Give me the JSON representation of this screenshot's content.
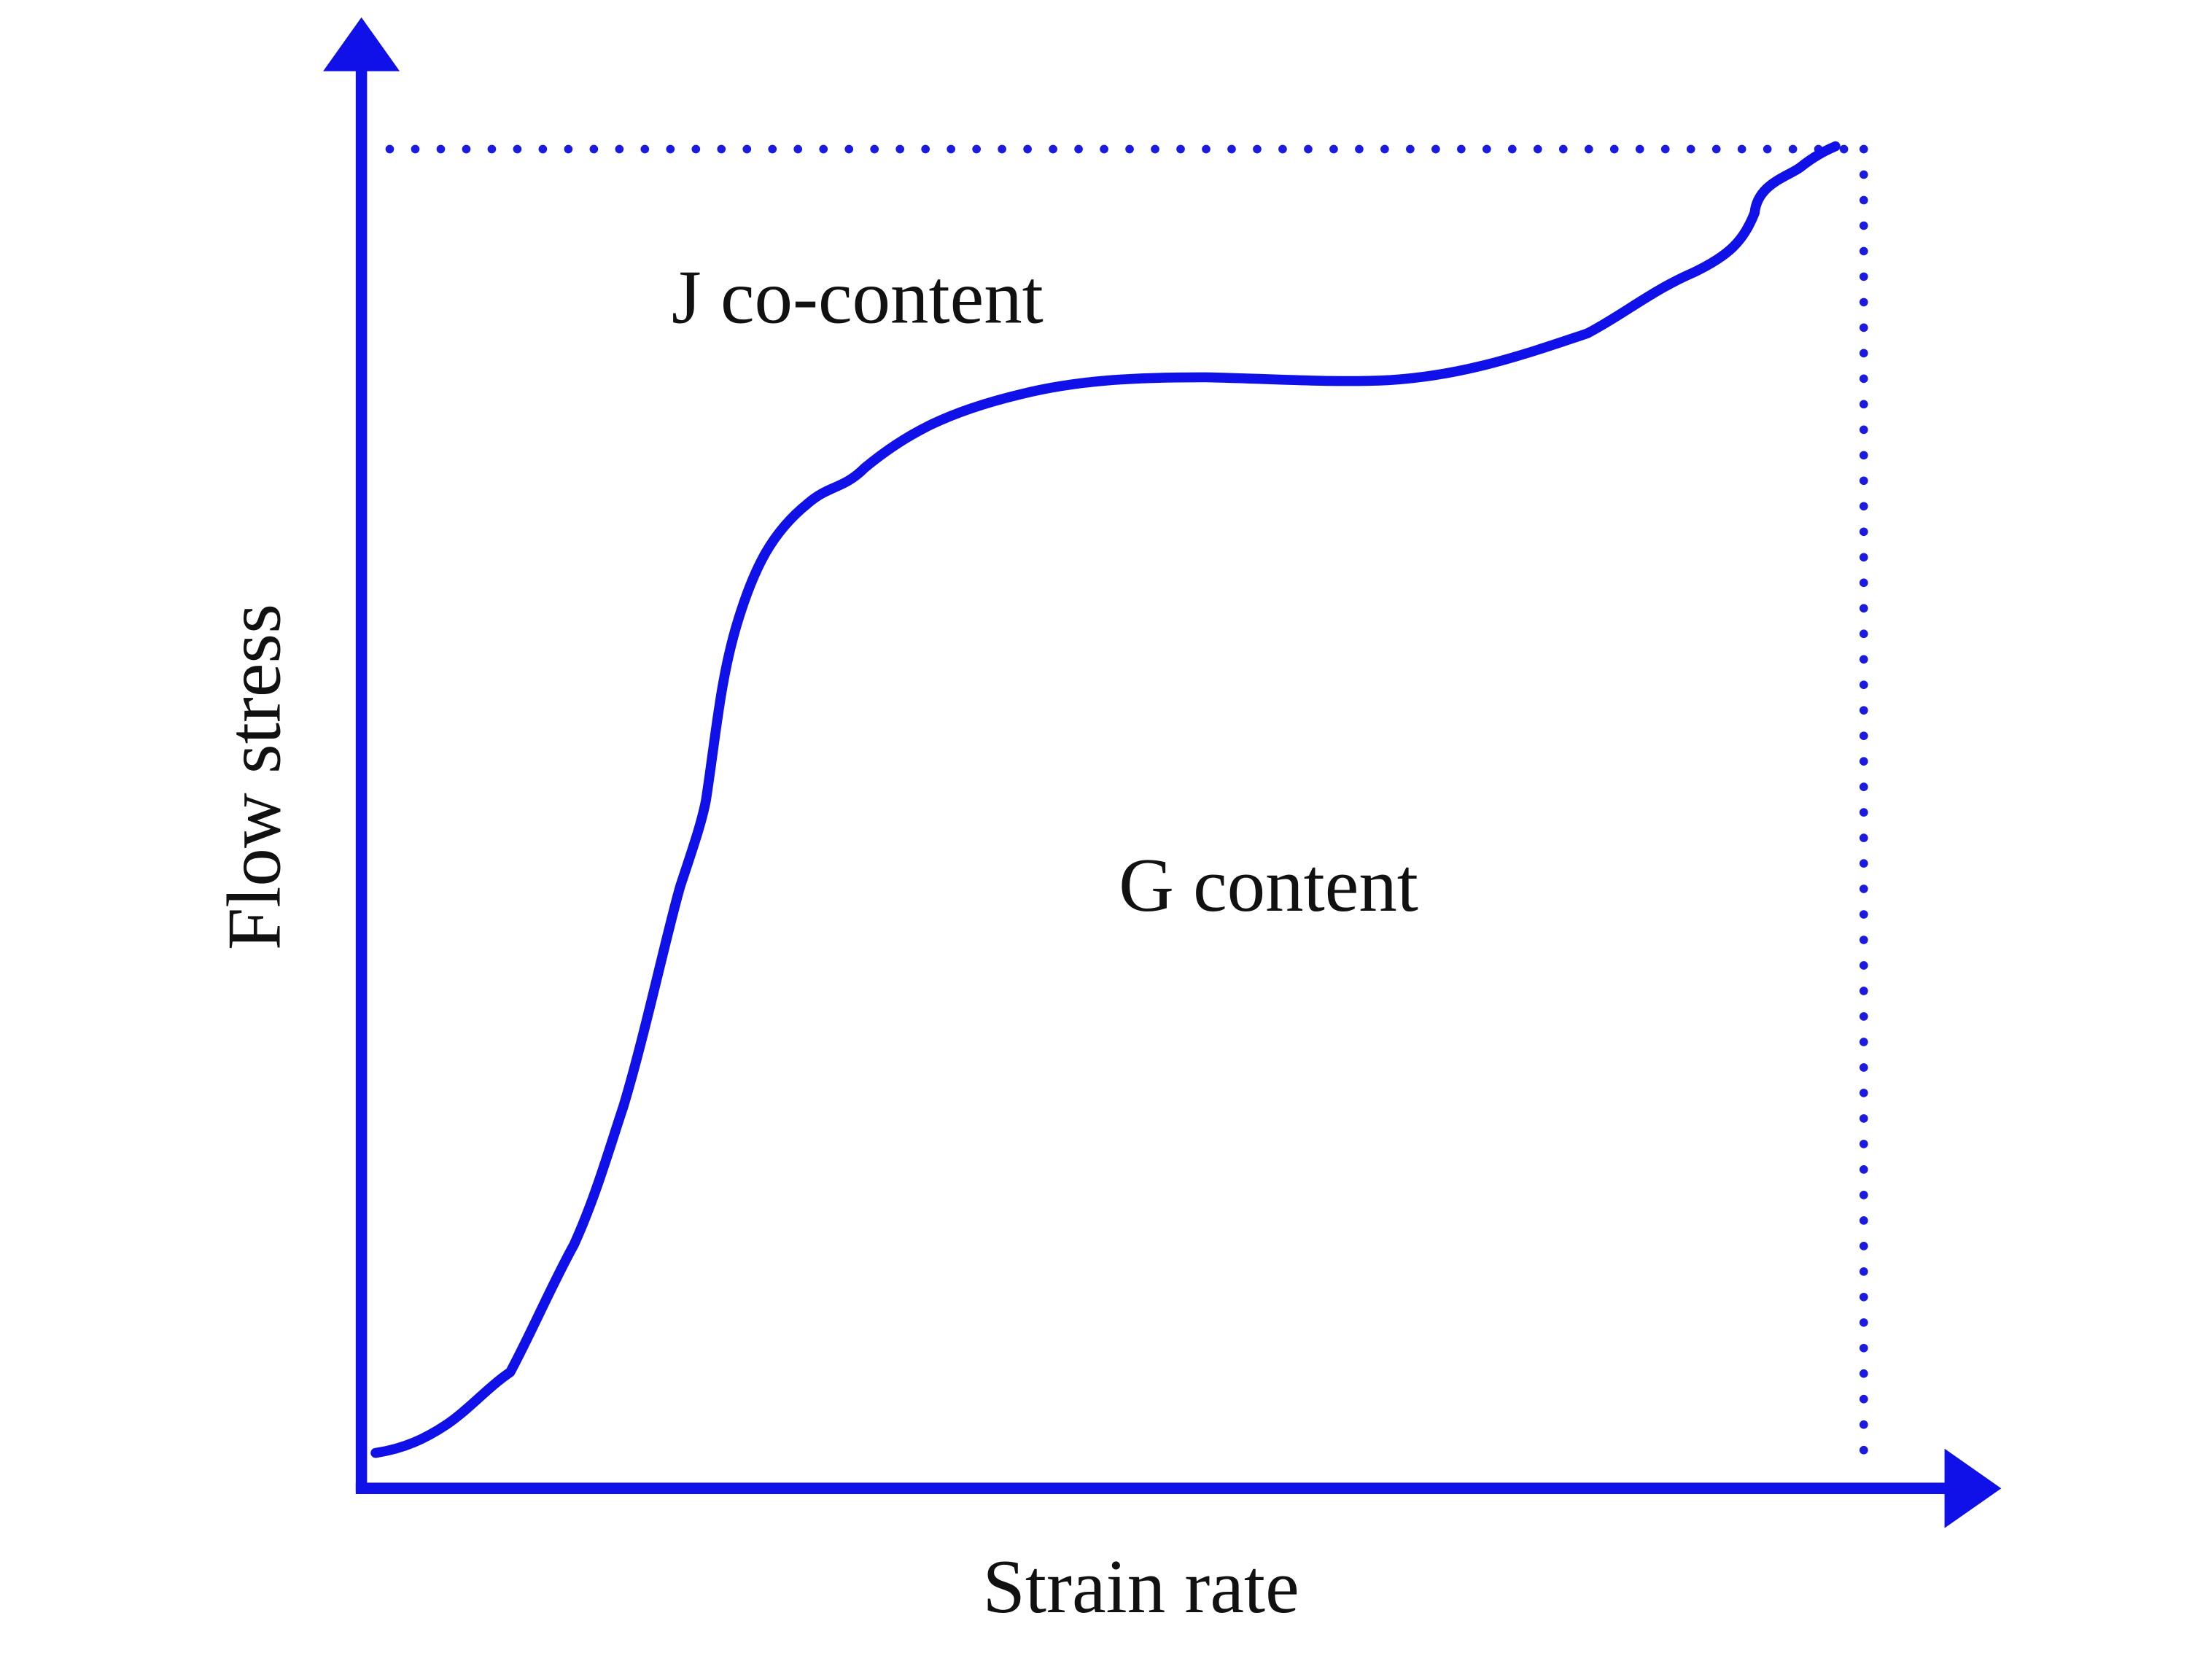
{
  "diagram": {
    "y_axis_label": "Flow stress",
    "x_axis_label": "Strain rate",
    "upper_region_label": "J co-content",
    "lower_region_label": "G content"
  }
}
